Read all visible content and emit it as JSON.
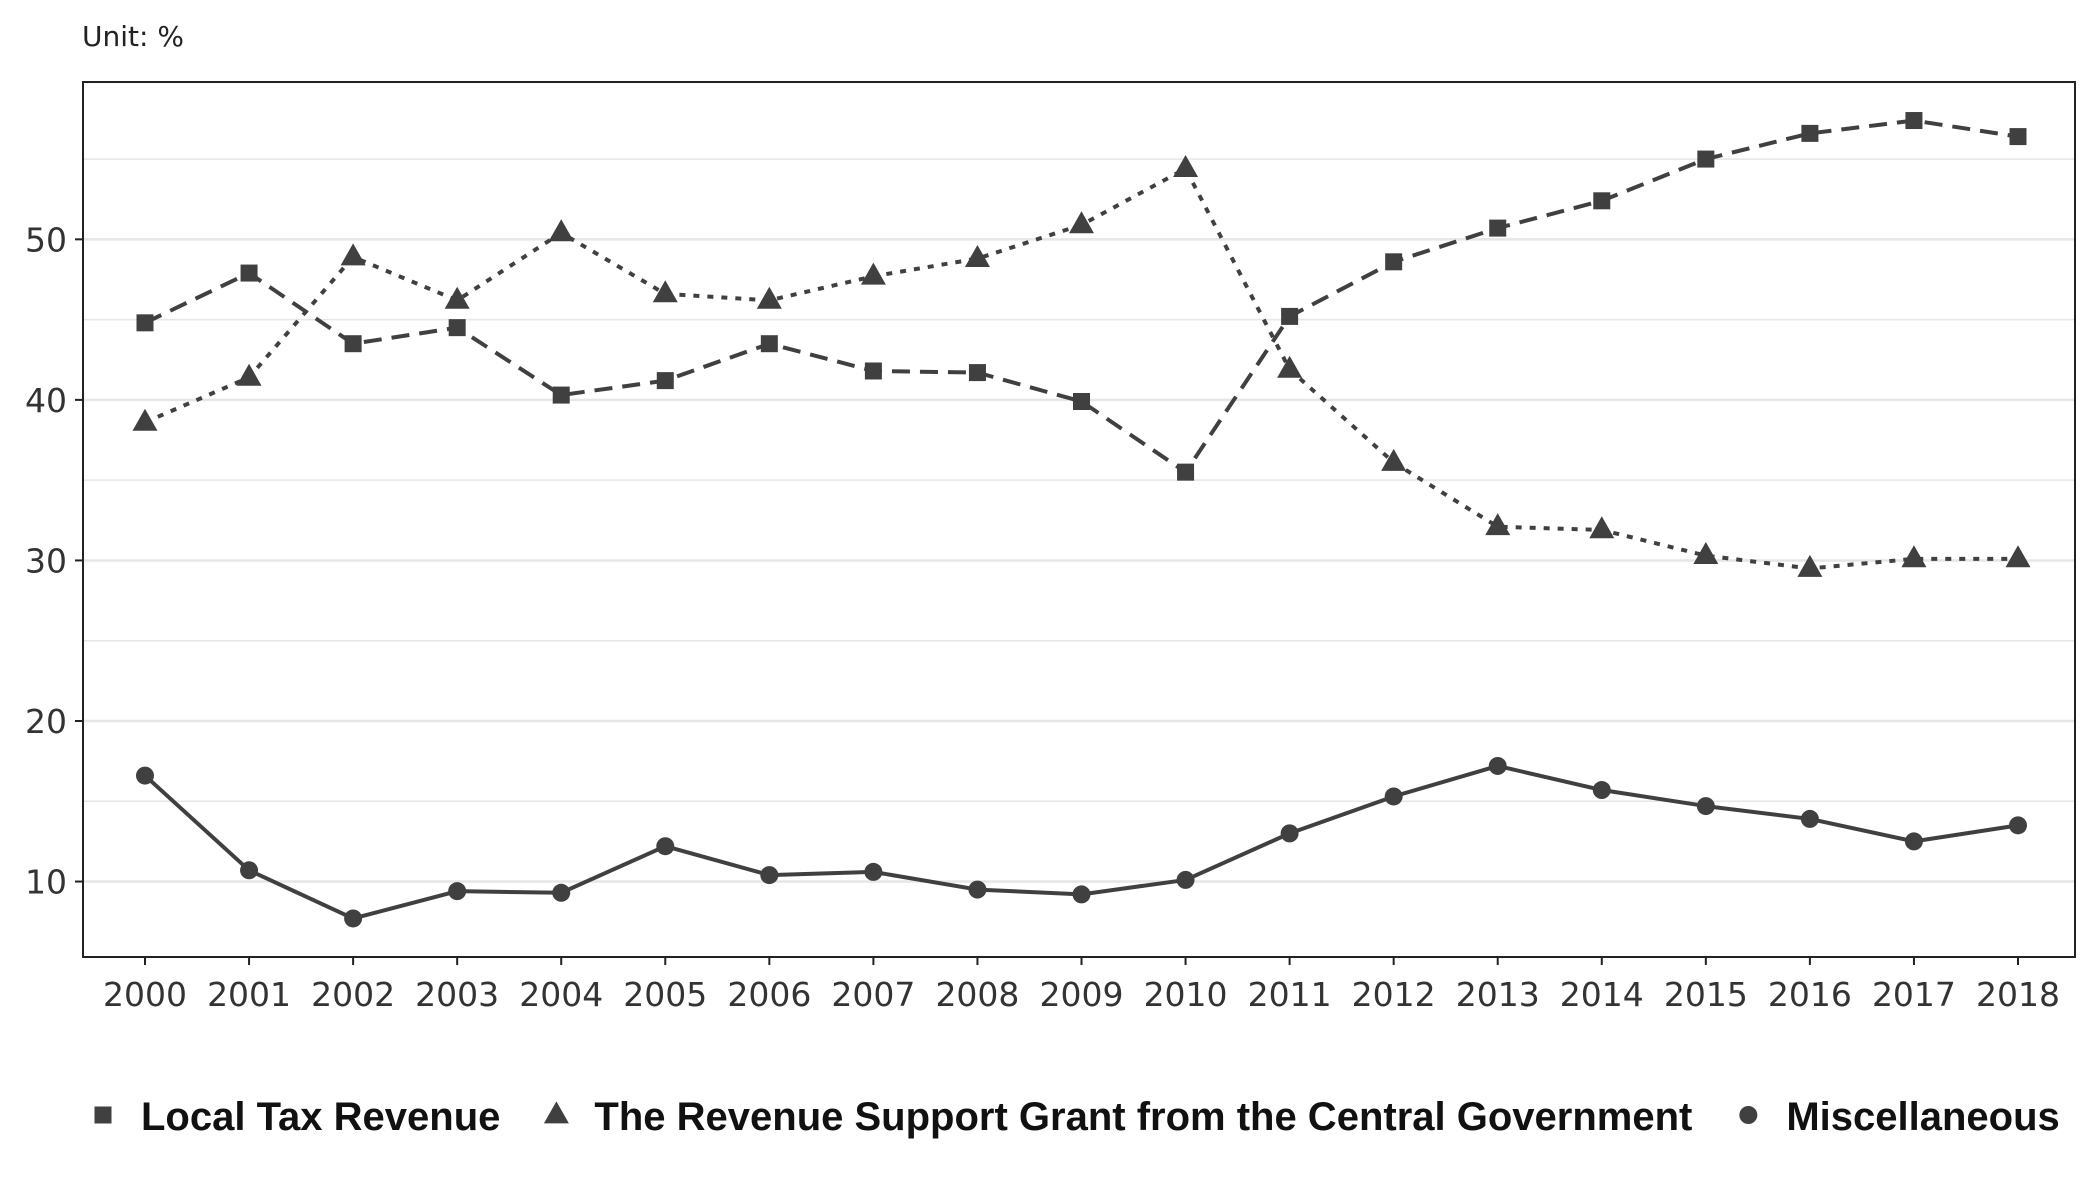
{
  "chart_data": {
    "type": "line",
    "unit_label": "Unit: %",
    "x": [
      "2000",
      "2001",
      "2002",
      "2003",
      "2004",
      "2005",
      "2006",
      "2007",
      "2008",
      "2009",
      "2010",
      "2011",
      "2012",
      "2013",
      "2014",
      "2015",
      "2016",
      "2017",
      "2018"
    ],
    "ylim": [
      5.3,
      59.8
    ],
    "y_ticks": [
      10,
      20,
      30,
      40,
      50
    ],
    "minor_gridlines": [
      15,
      25,
      35,
      45,
      55
    ],
    "grid": true,
    "legend_position": "bottom",
    "series": [
      {
        "name": "Local Tax Revenue",
        "marker": "square",
        "line_style": "dashed",
        "values": [
          44.8,
          47.9,
          43.5,
          44.5,
          40.3,
          41.2,
          43.5,
          41.8,
          41.7,
          39.9,
          35.5,
          45.2,
          48.6,
          50.7,
          52.4,
          55.0,
          56.6,
          57.4,
          56.4
        ]
      },
      {
        "name": "The Revenue Support Grant from the Central Government",
        "marker": "triangle",
        "line_style": "dotted",
        "values": [
          38.6,
          41.4,
          48.9,
          46.2,
          50.4,
          46.6,
          46.2,
          47.7,
          48.8,
          50.9,
          54.4,
          41.9,
          36.1,
          32.1,
          31.9,
          30.3,
          29.5,
          30.1,
          30.1
        ]
      },
      {
        "name": "Miscellaneous",
        "marker": "circle",
        "line_style": "solid",
        "values": [
          16.6,
          10.7,
          7.7,
          9.4,
          9.3,
          12.2,
          10.4,
          10.6,
          9.5,
          9.2,
          10.1,
          13.0,
          15.3,
          17.2,
          15.7,
          14.7,
          13.9,
          12.5,
          13.5
        ]
      }
    ]
  },
  "colors": {
    "series": "#404040",
    "axis": "#222222",
    "grid": "#e6e6e6",
    "background": "#ffffff"
  }
}
